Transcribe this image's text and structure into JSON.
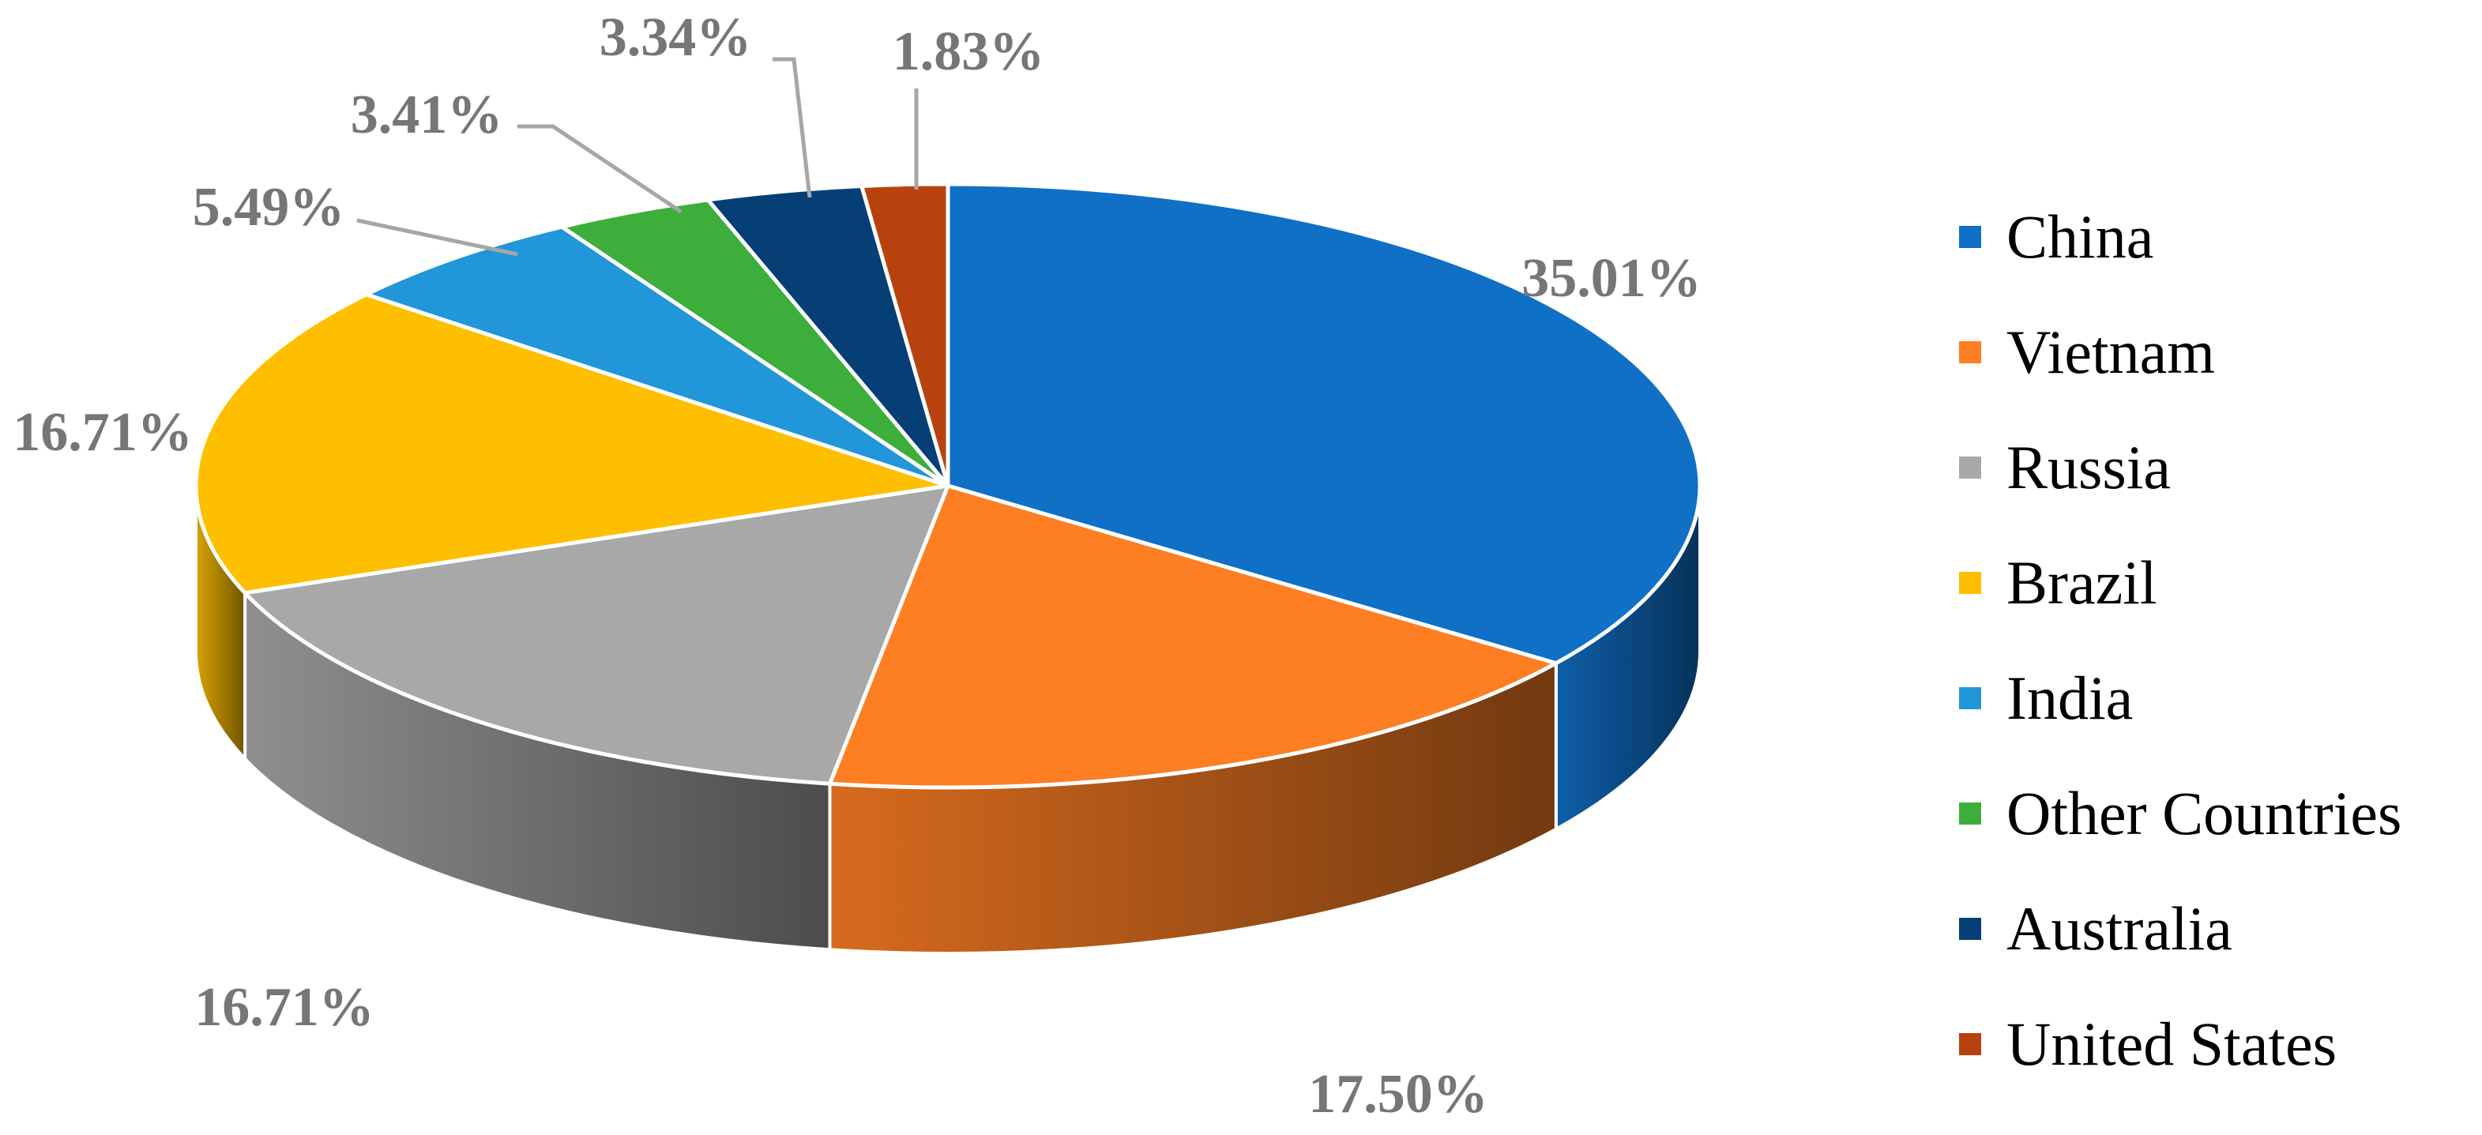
{
  "chart_data": {
    "type": "pie",
    "style": "3d",
    "legend_position": "right",
    "series": [
      {
        "name": "China",
        "value": 35.01,
        "label": "35.01%",
        "color": "#1070C6"
      },
      {
        "name": "Vietnam",
        "value": 17.5,
        "label": "17.50%",
        "color": "#FD7E23"
      },
      {
        "name": "Russia",
        "value": 16.71,
        "label": "16.71%",
        "color": "#A8A8A8"
      },
      {
        "name": "Brazil",
        "value": 16.71,
        "label": "16.71%",
        "color": "#FEBF00"
      },
      {
        "name": "India",
        "value": 5.49,
        "label": "5.49%",
        "color": "#2196D8"
      },
      {
        "name": "Other Countries",
        "value": 3.41,
        "label": "3.41%",
        "color": "#3DAE3C"
      },
      {
        "name": "Australia",
        "value": 3.34,
        "label": "3.34%",
        "color": "#053F75"
      },
      {
        "name": "United States",
        "value": 1.83,
        "label": "1.83%",
        "color": "#B8420E"
      }
    ]
  }
}
